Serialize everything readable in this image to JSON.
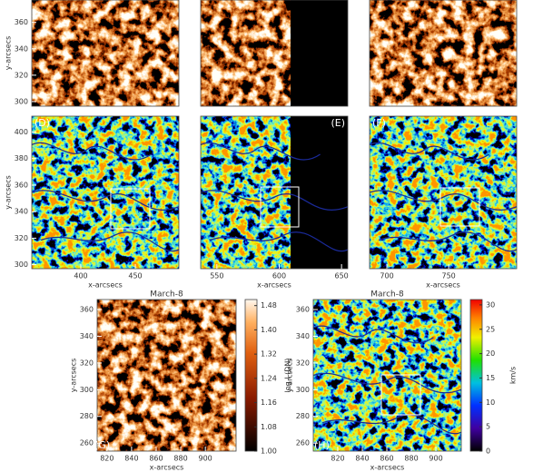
{
  "chart_data": [
    {
      "type": "image",
      "colormap": "heat",
      "ylabel": "y-arcsecs",
      "ylim": [
        296.5,
        377
      ],
      "yticks": [
        300,
        320,
        340,
        360
      ]
    },
    {
      "type": "image",
      "colormap": "heat"
    },
    {
      "type": "image",
      "colormap": "heat"
    },
    {
      "type": "image",
      "colormap": "velocity",
      "label": "(D)",
      "xlabel": "x-arcsecs",
      "ylabel": "y-arcsecs",
      "xlim": [
        355,
        490
      ],
      "xticks": [
        400,
        450
      ],
      "ylim": [
        297,
        412
      ],
      "yticks": [
        300,
        320,
        340,
        360,
        380,
        400
      ]
    },
    {
      "type": "image",
      "colormap": "velocity",
      "label": "(E)",
      "xlabel": "x-arcsecs",
      "xlim": [
        537,
        655
      ],
      "xticks": [
        550,
        600,
        650
      ]
    },
    {
      "type": "image",
      "colormap": "velocity",
      "label": "(F)",
      "xlabel": "x-arcsecs",
      "xlim": [
        686,
        805
      ],
      "xticks": [
        700,
        750
      ]
    },
    {
      "type": "image",
      "colormap": "heat",
      "title": "March-8",
      "label": "(G)",
      "xlabel": "x-arcsecs",
      "ylabel": "y-arcsecs",
      "xlim": [
        812,
        925
      ],
      "xticks": [
        820,
        840,
        860,
        880,
        900
      ],
      "ylim": [
        254,
        367.5
      ],
      "yticks": [
        260,
        280,
        300,
        320,
        340,
        360
      ],
      "colorbar": {
        "label": "log I (DN)",
        "lim": [
          1,
          1.5
        ],
        "ticks": [
          {
            "value": 1,
            "label": "1.00"
          },
          1.08,
          1.16,
          1.24,
          1.32,
          {
            "value": 1.4,
            "label": "1.40"
          },
          1.48
        ]
      }
    },
    {
      "type": "image",
      "colormap": "velocity",
      "title": "March-8",
      "label": "(H)",
      "xlabel": "x-arcsecs",
      "ylabel": "y-arcsecs",
      "xlim": [
        800,
        920.7
      ],
      "xticks": [
        820,
        840,
        860,
        880,
        900
      ],
      "ylim": [
        254,
        367.5
      ],
      "yticks": [
        260,
        280,
        300,
        320,
        340,
        360
      ],
      "colorbar": {
        "label": "km/s",
        "lim": [
          0,
          31.1
        ],
        "ticks": [
          0,
          5,
          10,
          15,
          20,
          25,
          30
        ]
      }
    }
  ]
}
